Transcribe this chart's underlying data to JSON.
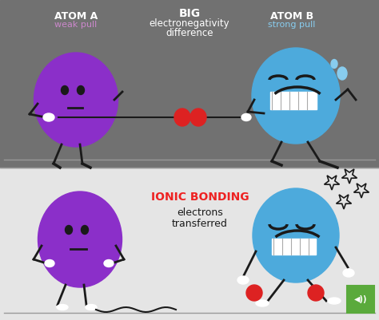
{
  "bg_top": "#717171",
  "bg_bottom": "#e5e5e5",
  "purple": "#8B2FC9",
  "blue": "#4DAADC",
  "red": "#DD2222",
  "white": "#FFFFFF",
  "dark": "#1a1a1a",
  "gray_line": "#999999",
  "atom_a_label": "ATOM A",
  "atom_a_sub": "weak pull",
  "atom_a_sub_color": "#CC88CC",
  "atom_b_label": "ATOM B",
  "atom_b_sub": "strong pull",
  "atom_b_sub_color": "#88CCEE",
  "center_label1": "BIG",
  "center_label2": "electronegativity",
  "center_label3": "difference",
  "ionic_label": "IONIC BONDING",
  "ionic_color": "#EE2222",
  "ionic_sub1": "electrons",
  "ionic_sub2": "transferred",
  "logo_green": "#5AAA3C",
  "fig_width": 4.74,
  "fig_height": 4.01,
  "dpi": 100
}
